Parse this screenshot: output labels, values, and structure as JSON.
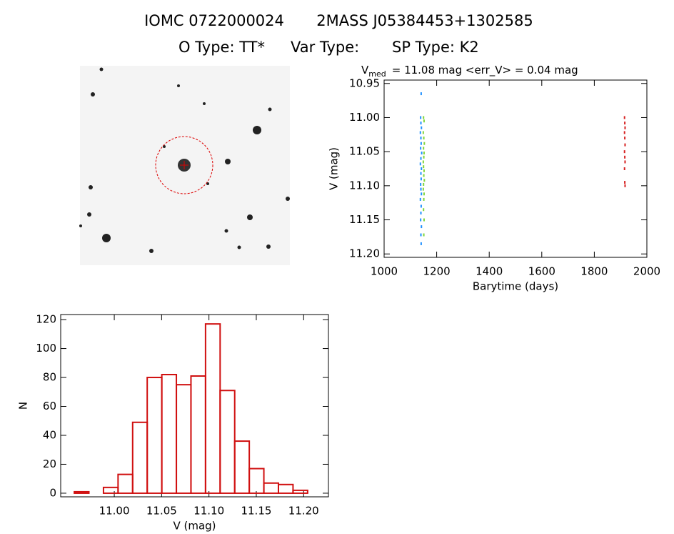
{
  "header": {
    "id": "IOMC 0722000024",
    "name": "2MASS J05384453+1302585",
    "otype": "O Type: TT*",
    "vartype": "Var Type:",
    "sptype": "SP Type: K2"
  },
  "chart_data": [
    {
      "type": "scatter",
      "title": "V",
      "title_subscript": "med",
      "title_rest": "= 11.08 mag <err_V> = 0.04 mag",
      "x_label": "Barytime (days)",
      "y_label": "V (mag)",
      "xlim": [
        1000,
        2000
      ],
      "xticks": [
        1000,
        1200,
        1400,
        1600,
        1800,
        2000
      ],
      "ylim": [
        10.945,
        11.205
      ],
      "y_inverted": true,
      "yticks": [
        10.95,
        {
          "value": 11.0,
          "label": "11.00"
        },
        11.05,
        {
          "value": 11.1,
          "label": "11.10"
        },
        11.15,
        {
          "value": 11.2,
          "label": "11.20"
        }
      ],
      "series": [
        {
          "color": "#1e90ff",
          "x": [
            1141,
            1139,
            1140,
            1142,
            1138,
            1140,
            1141,
            1139,
            1143,
            1140,
            1138,
            1142,
            1140,
            1141,
            1139,
            1140,
            1142,
            1138,
            1141,
            1140,
            1139,
            1142,
            1140,
            1141
          ],
          "values": [
            10.965,
            11.0,
            11.008,
            11.015,
            11.022,
            11.03,
            11.038,
            11.045,
            11.052,
            11.06,
            11.068,
            11.075,
            11.082,
            11.09,
            11.098,
            11.105,
            11.112,
            11.12,
            11.13,
            11.14,
            11.15,
            11.16,
            11.172,
            11.185
          ]
        },
        {
          "color": "#7fd63a",
          "x": [
            1150,
            1152,
            1149,
            1151,
            1153,
            1150,
            1152,
            1151,
            1149,
            1150,
            1152,
            1151,
            1153,
            1150,
            1149,
            1152,
            1151,
            1150,
            1152,
            1151
          ],
          "values": [
            11.0,
            11.005,
            11.022,
            11.03,
            11.038,
            11.045,
            11.052,
            11.058,
            11.065,
            11.072,
            11.078,
            11.085,
            11.092,
            11.098,
            11.105,
            11.112,
            11.12,
            11.135,
            11.15,
            11.172
          ]
        },
        {
          "color": "#d62020",
          "x": [
            1915,
            1916,
            1917,
            1915,
            1916,
            1917,
            1915,
            1916,
            1917,
            1915,
            1916,
            1917
          ],
          "values": [
            11.0,
            11.008,
            11.015,
            11.022,
            11.03,
            11.04,
            11.05,
            11.058,
            11.065,
            11.075,
            11.095,
            11.1
          ]
        }
      ]
    },
    {
      "type": "histogram",
      "x_label": "V (mag)",
      "y_label": "N",
      "color": "#d01010",
      "bins": [
        10.9578,
        10.9732,
        10.9886,
        11.004,
        11.0194,
        11.0348,
        11.0502,
        11.0656,
        11.081,
        11.0964,
        11.1118,
        11.1272,
        11.1426,
        11.158,
        11.1734,
        11.1888,
        11.2042
      ],
      "values": [
        1,
        0,
        4,
        13,
        49,
        80,
        82,
        75,
        81,
        117,
        71,
        36,
        17,
        7,
        6,
        2
      ],
      "xlim": [
        10.9434,
        11.2262
      ],
      "xticks": [
        {
          "value": 11.0,
          "label": "11.00"
        },
        11.05,
        {
          "value": 11.1,
          "label": "11.10"
        },
        11.15,
        {
          "value": 11.2,
          "label": "11.20"
        }
      ],
      "ylim": [
        -2.5,
        123.5
      ],
      "yticks": [
        0,
        20,
        40,
        60,
        80,
        100,
        120
      ]
    }
  ]
}
